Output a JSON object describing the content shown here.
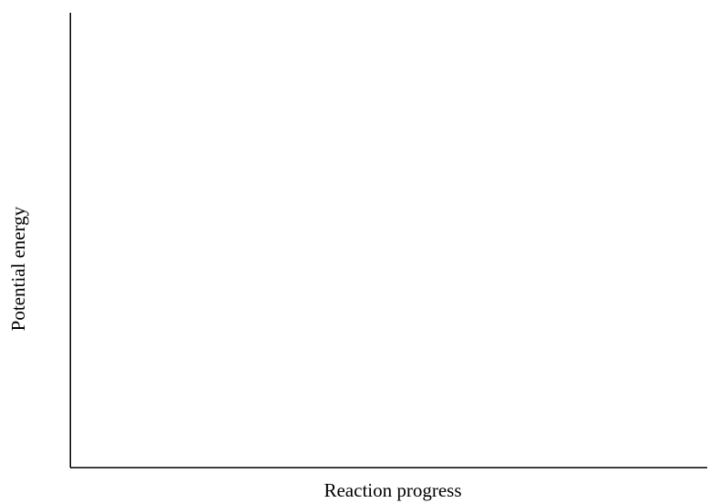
{
  "chart_data": {
    "type": "line",
    "title": "",
    "xlabel": "Reaction progress",
    "ylabel": "Potential energy",
    "series": [],
    "grid": false,
    "ticks": false,
    "colors": {
      "axis": "#000000",
      "background": "#ffffff"
    }
  }
}
